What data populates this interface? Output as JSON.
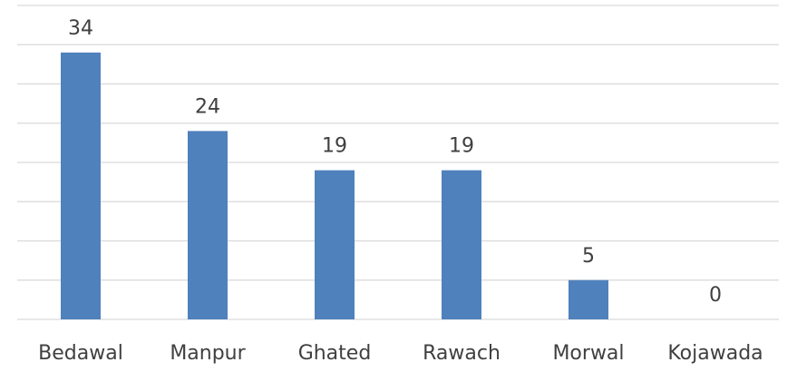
{
  "chart_data": {
    "type": "bar",
    "categories": [
      "Bedawal",
      "Manpur",
      "Ghated",
      "Rawach",
      "Morwal",
      "Kojawada"
    ],
    "values": [
      34,
      24,
      19,
      19,
      5,
      0
    ],
    "color": "#4f81bd",
    "ylim": [
      0,
      40
    ],
    "yticks": [
      0,
      5,
      10,
      15,
      20,
      25,
      30,
      35,
      40
    ],
    "grid": true
  }
}
